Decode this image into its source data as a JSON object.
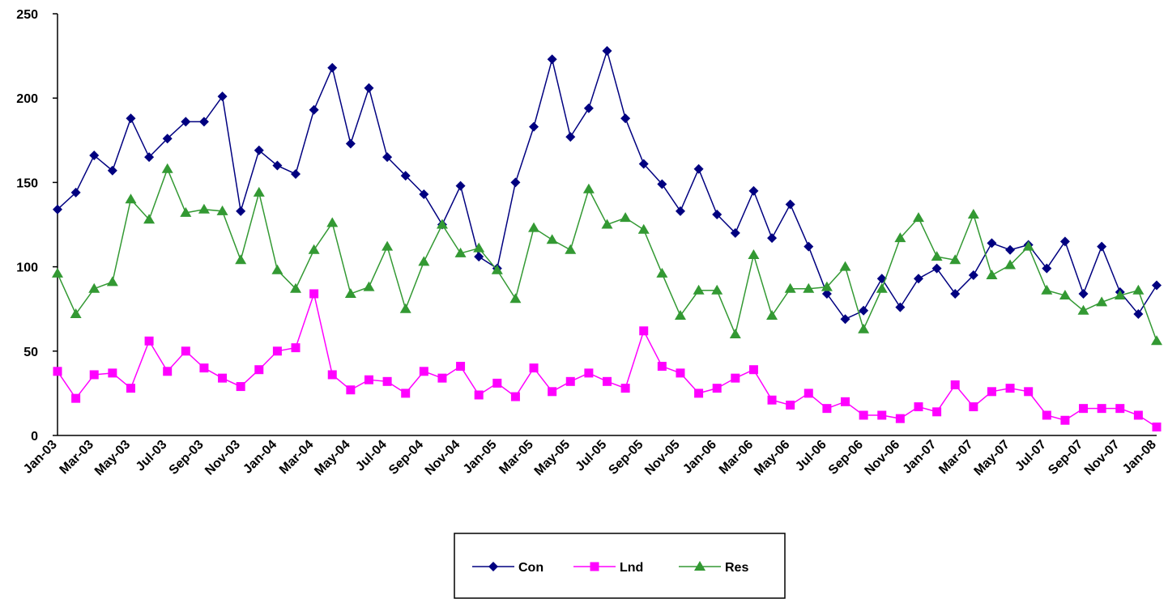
{
  "chart_data": {
    "type": "line",
    "categories": [
      "Jan-03",
      null,
      "Mar-03",
      null,
      "May-03",
      null,
      "Jul-03",
      null,
      "Sep-03",
      null,
      "Nov-03",
      null,
      "Jan-04",
      null,
      "Mar-04",
      null,
      "May-04",
      null,
      "Jul-04",
      null,
      "Sep-04",
      null,
      "Nov-04",
      null,
      "Jan-05",
      null,
      "Mar-05",
      null,
      "May-05",
      null,
      "Jul-05",
      null,
      "Sep-05",
      null,
      "Nov-05",
      null,
      "Jan-06",
      null,
      "Mar-06",
      null,
      "May-06",
      null,
      "Jul-06",
      null,
      "Sep-06",
      null,
      "Nov-06",
      null,
      "Jan-07",
      null,
      "Mar-07",
      null,
      "May-07",
      null,
      "Jul-07",
      null,
      "Sep-07",
      null,
      "Nov-07",
      null,
      "Jan-08"
    ],
    "series": [
      {
        "name": "Con",
        "color": "#000080",
        "marker": "diamond",
        "values": [
          134,
          144,
          166,
          157,
          188,
          165,
          176,
          186,
          186,
          201,
          133,
          169,
          160,
          155,
          193,
          218,
          173,
          206,
          165,
          154,
          143,
          125,
          148,
          106,
          99,
          150,
          183,
          223,
          177,
          194,
          228,
          188,
          161,
          149,
          133,
          158,
          131,
          120,
          145,
          117,
          137,
          112,
          84,
          69,
          74,
          93,
          76,
          93,
          99,
          84,
          95,
          114,
          110,
          113,
          99,
          115,
          84,
          112,
          85,
          72,
          89
        ]
      },
      {
        "name": "Lnd",
        "color": "#ff00ff",
        "marker": "square",
        "values": [
          38,
          22,
          36,
          37,
          28,
          56,
          38,
          50,
          40,
          34,
          29,
          39,
          50,
          52,
          84,
          36,
          27,
          33,
          32,
          25,
          38,
          34,
          41,
          24,
          31,
          23,
          40,
          26,
          32,
          37,
          32,
          28,
          62,
          41,
          37,
          25,
          28,
          34,
          39,
          21,
          18,
          25,
          16,
          20,
          12,
          12,
          10,
          17,
          14,
          30,
          17,
          26,
          28,
          26,
          12,
          9,
          16,
          16,
          16,
          12,
          5
        ]
      },
      {
        "name": "Res",
        "color": "#339933",
        "marker": "triangle",
        "values": [
          96,
          72,
          87,
          91,
          140,
          128,
          158,
          132,
          134,
          133,
          104,
          144,
          98,
          87,
          110,
          126,
          84,
          88,
          112,
          75,
          103,
          125,
          108,
          111,
          98,
          81,
          123,
          116,
          110,
          146,
          125,
          129,
          122,
          96,
          71,
          86,
          86,
          60,
          107,
          71,
          87,
          87,
          88,
          100,
          63,
          87,
          117,
          129,
          106,
          104,
          131,
          95,
          101,
          112,
          86,
          83,
          74,
          79,
          83,
          86,
          56
        ]
      }
    ],
    "ylim": [
      0,
      250
    ],
    "yticks": [
      0,
      50,
      100,
      150,
      200,
      250
    ],
    "legend": "bottom"
  }
}
